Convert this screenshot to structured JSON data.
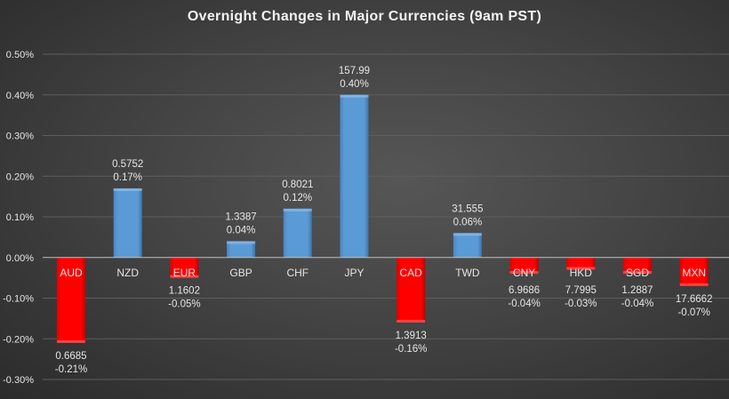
{
  "chart_data": {
    "type": "bar",
    "title": "Overnight Changes in Major Currencies (9am PST)",
    "xlabel": "",
    "ylabel": "",
    "ylim": [
      -0.3,
      0.5
    ],
    "yticks": [
      "0.50%",
      "0.40%",
      "0.30%",
      "0.20%",
      "0.10%",
      "0.00%",
      "-0.10%",
      "-0.20%",
      "-0.30%"
    ],
    "grid": true,
    "categories": [
      "AUD",
      "NZD",
      "EUR",
      "GBP",
      "CHF",
      "JPY",
      "CAD",
      "TWD",
      "CNY",
      "HKD",
      "SGD",
      "MXN"
    ],
    "values": [
      -0.21,
      0.17,
      -0.05,
      0.04,
      0.12,
      0.4,
      -0.16,
      0.06,
      -0.04,
      -0.03,
      -0.04,
      -0.07
    ],
    "rates": [
      "0.6685",
      "0.5752",
      "1.1602",
      "1.3387",
      "0.8021",
      "157.99",
      "1.3913",
      "31.555",
      "6.9686",
      "7.7995",
      "1.2887",
      "17.6662"
    ],
    "pct_labels": [
      "-0.21%",
      "0.17%",
      "-0.05%",
      "0.04%",
      "0.12%",
      "0.40%",
      "-0.16%",
      "0.06%",
      "-0.04%",
      "-0.03%",
      "-0.04%",
      "-0.07%"
    ],
    "colors": {
      "positive": "#5b9bd5",
      "negative": "#ff0000"
    }
  }
}
